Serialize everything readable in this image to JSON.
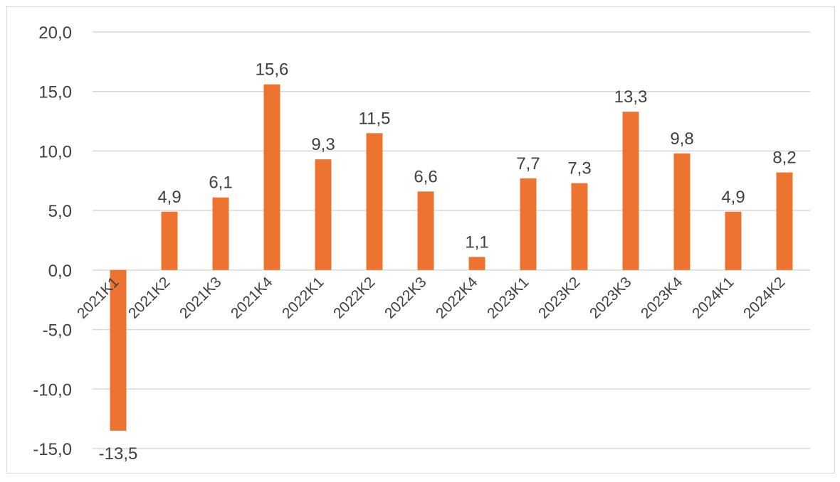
{
  "chart_data": {
    "type": "bar",
    "title": "",
    "xlabel": "",
    "ylabel": "",
    "categories": [
      "2021K1",
      "2021K2",
      "2021K3",
      "2021K4",
      "2022K1",
      "2022K2",
      "2022K3",
      "2022K4",
      "2023K1",
      "2023K2",
      "2023K3",
      "2023K4",
      "2024K1",
      "2024K2"
    ],
    "values": [
      -13.5,
      4.9,
      6.1,
      15.6,
      9.3,
      11.5,
      6.6,
      1.1,
      7.7,
      7.3,
      13.3,
      9.8,
      4.9,
      8.2
    ],
    "data_labels": [
      "-13,5",
      "4,9",
      "6,1",
      "15,6",
      "9,3",
      "11,5",
      "6,6",
      "1,1",
      "7,7",
      "7,3",
      "13,3",
      "9,8",
      "4,9",
      "8,2"
    ],
    "ylim": [
      -15,
      20
    ],
    "yticks": [
      20,
      15,
      10,
      5,
      0,
      -5,
      -10,
      -15
    ],
    "ytick_labels": [
      "20,0",
      "15,0",
      "10,0",
      "5,0",
      "0,0",
      "-5,0",
      "-10,0",
      "-15,0"
    ],
    "grid": true,
    "legend": "none",
    "bar_color": "#ED7330",
    "grid_color": "#d9d9d9",
    "text_color": "#404040"
  }
}
